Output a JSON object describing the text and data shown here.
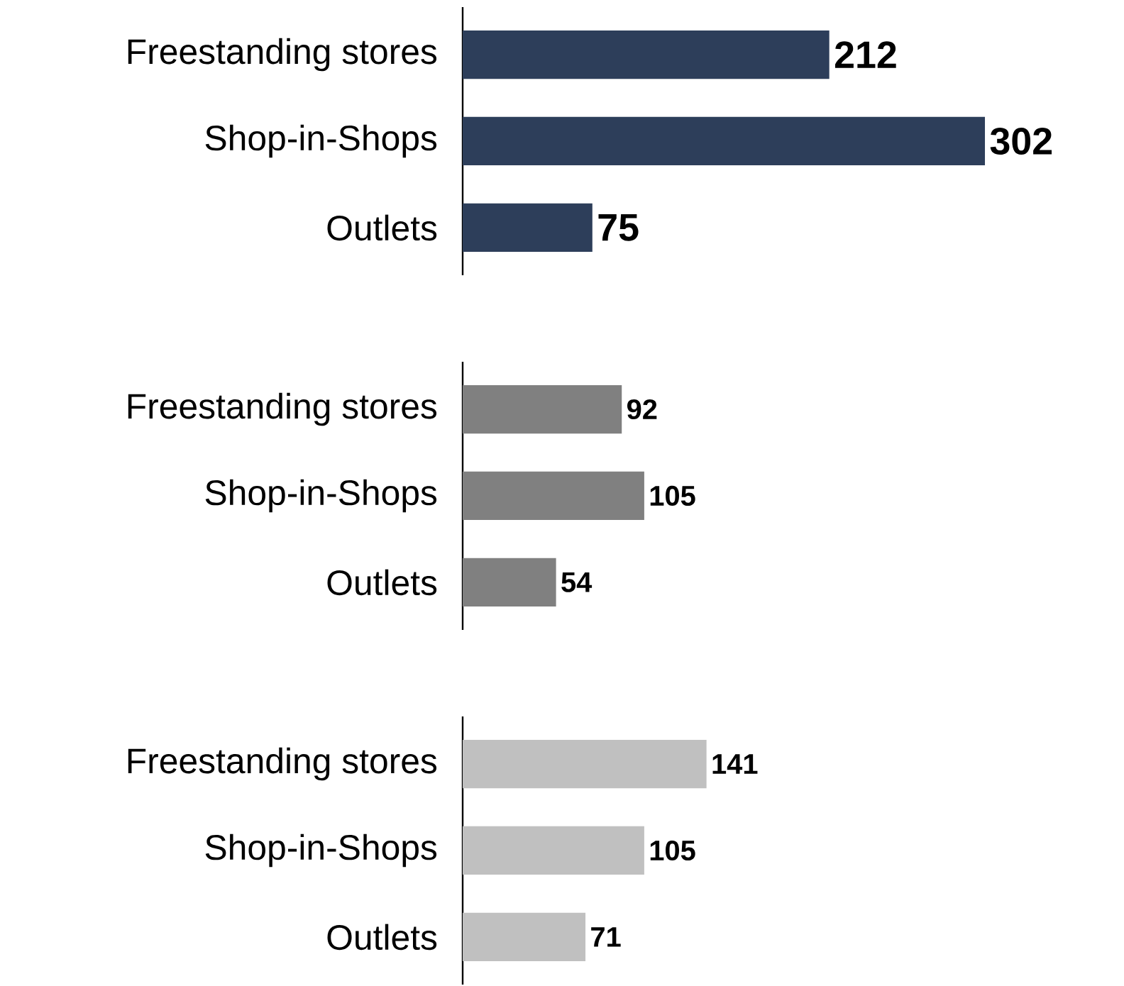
{
  "chart_data": [
    {
      "type": "bar",
      "orientation": "horizontal",
      "categories": [
        "Freestanding stores",
        "Shop-in-Shops",
        "Outlets"
      ],
      "values": [
        212,
        302,
        75
      ],
      "color": "#2d3e5a",
      "data_labels": true
    },
    {
      "type": "bar",
      "orientation": "horizontal",
      "categories": [
        "Freestanding stores",
        "Shop-in-Shops",
        "Outlets"
      ],
      "values": [
        92,
        105,
        54
      ],
      "color": "#808080",
      "data_labels": true
    },
    {
      "type": "bar",
      "orientation": "horizontal",
      "categories": [
        "Freestanding stores",
        "Shop-in-Shops",
        "Outlets"
      ],
      "values": [
        141,
        105,
        71
      ],
      "color": "#c0c0c0",
      "data_labels": true
    }
  ]
}
